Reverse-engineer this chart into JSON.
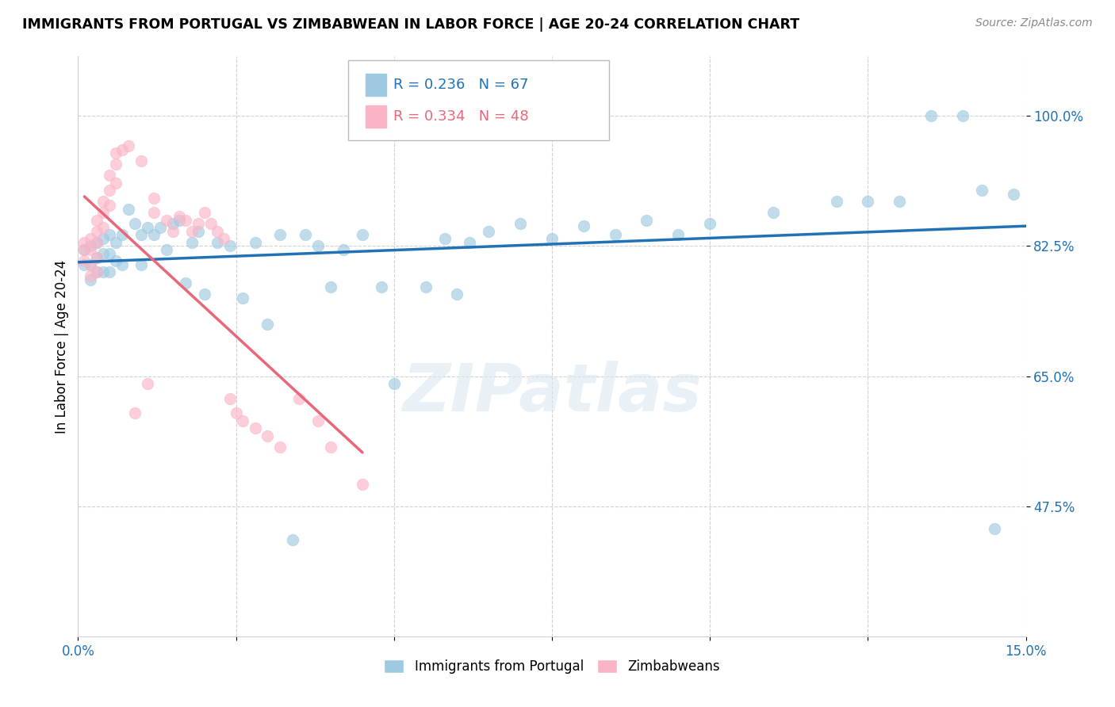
{
  "title": "IMMIGRANTS FROM PORTUGAL VS ZIMBABWEAN IN LABOR FORCE | AGE 20-24 CORRELATION CHART",
  "source": "Source: ZipAtlas.com",
  "ylabel": "In Labor Force | Age 20-24",
  "xlim": [
    0.0,
    0.15
  ],
  "ylim": [
    0.3,
    1.08
  ],
  "yticks": [
    0.475,
    0.65,
    0.825,
    1.0
  ],
  "ytick_labels": [
    "47.5%",
    "65.0%",
    "82.5%",
    "100.0%"
  ],
  "xtick_positions": [
    0.0,
    0.025,
    0.05,
    0.075,
    0.1,
    0.125,
    0.15
  ],
  "xtick_labels": [
    "0.0%",
    "",
    "",
    "",
    "",
    "",
    "15.0%"
  ],
  "legend_blue_label": "Immigrants from Portugal",
  "legend_pink_label": "Zimbabweans",
  "R_blue": 0.236,
  "N_blue": 67,
  "R_pink": 0.334,
  "N_pink": 48,
  "blue_color": "#9ecae1",
  "pink_color": "#fbb4c6",
  "blue_line_color": "#2171b5",
  "pink_line_color": "#e8687a",
  "watermark": "ZIPatlas",
  "blue_points_x": [
    0.001,
    0.001,
    0.002,
    0.002,
    0.002,
    0.003,
    0.003,
    0.003,
    0.004,
    0.004,
    0.004,
    0.005,
    0.005,
    0.005,
    0.006,
    0.006,
    0.007,
    0.007,
    0.008,
    0.009,
    0.01,
    0.01,
    0.011,
    0.012,
    0.013,
    0.014,
    0.015,
    0.016,
    0.017,
    0.018,
    0.019,
    0.02,
    0.022,
    0.024,
    0.026,
    0.028,
    0.03,
    0.032,
    0.034,
    0.036,
    0.038,
    0.04,
    0.042,
    0.045,
    0.048,
    0.05,
    0.055,
    0.058,
    0.06,
    0.062,
    0.065,
    0.07,
    0.075,
    0.08,
    0.085,
    0.09,
    0.095,
    0.1,
    0.11,
    0.12,
    0.125,
    0.13,
    0.135,
    0.14,
    0.143,
    0.145,
    0.148
  ],
  "blue_points_y": [
    0.82,
    0.8,
    0.825,
    0.8,
    0.78,
    0.83,
    0.81,
    0.79,
    0.835,
    0.815,
    0.79,
    0.84,
    0.815,
    0.79,
    0.83,
    0.805,
    0.84,
    0.8,
    0.875,
    0.855,
    0.84,
    0.8,
    0.85,
    0.84,
    0.85,
    0.82,
    0.855,
    0.86,
    0.775,
    0.83,
    0.845,
    0.76,
    0.83,
    0.825,
    0.755,
    0.83,
    0.72,
    0.84,
    0.43,
    0.84,
    0.825,
    0.77,
    0.82,
    0.84,
    0.77,
    0.64,
    0.77,
    0.835,
    0.76,
    0.83,
    0.845,
    0.855,
    0.835,
    0.852,
    0.84,
    0.86,
    0.84,
    0.855,
    0.87,
    0.885,
    0.885,
    0.885,
    1.0,
    1.0,
    0.9,
    0.445,
    0.895
  ],
  "pink_points_x": [
    0.001,
    0.001,
    0.001,
    0.002,
    0.002,
    0.002,
    0.002,
    0.003,
    0.003,
    0.003,
    0.003,
    0.003,
    0.004,
    0.004,
    0.004,
    0.005,
    0.005,
    0.005,
    0.006,
    0.006,
    0.006,
    0.007,
    0.008,
    0.009,
    0.01,
    0.011,
    0.012,
    0.012,
    0.014,
    0.015,
    0.016,
    0.017,
    0.018,
    0.019,
    0.02,
    0.021,
    0.022,
    0.023,
    0.024,
    0.025,
    0.026,
    0.028,
    0.03,
    0.032,
    0.035,
    0.038,
    0.04,
    0.045
  ],
  "pink_points_y": [
    0.83,
    0.82,
    0.805,
    0.835,
    0.82,
    0.8,
    0.785,
    0.86,
    0.845,
    0.83,
    0.81,
    0.79,
    0.885,
    0.87,
    0.85,
    0.92,
    0.9,
    0.88,
    0.95,
    0.935,
    0.91,
    0.955,
    0.96,
    0.6,
    0.94,
    0.64,
    0.89,
    0.87,
    0.86,
    0.845,
    0.865,
    0.86,
    0.845,
    0.855,
    0.87,
    0.855,
    0.845,
    0.835,
    0.62,
    0.6,
    0.59,
    0.58,
    0.57,
    0.555,
    0.62,
    0.59,
    0.555,
    0.505
  ]
}
